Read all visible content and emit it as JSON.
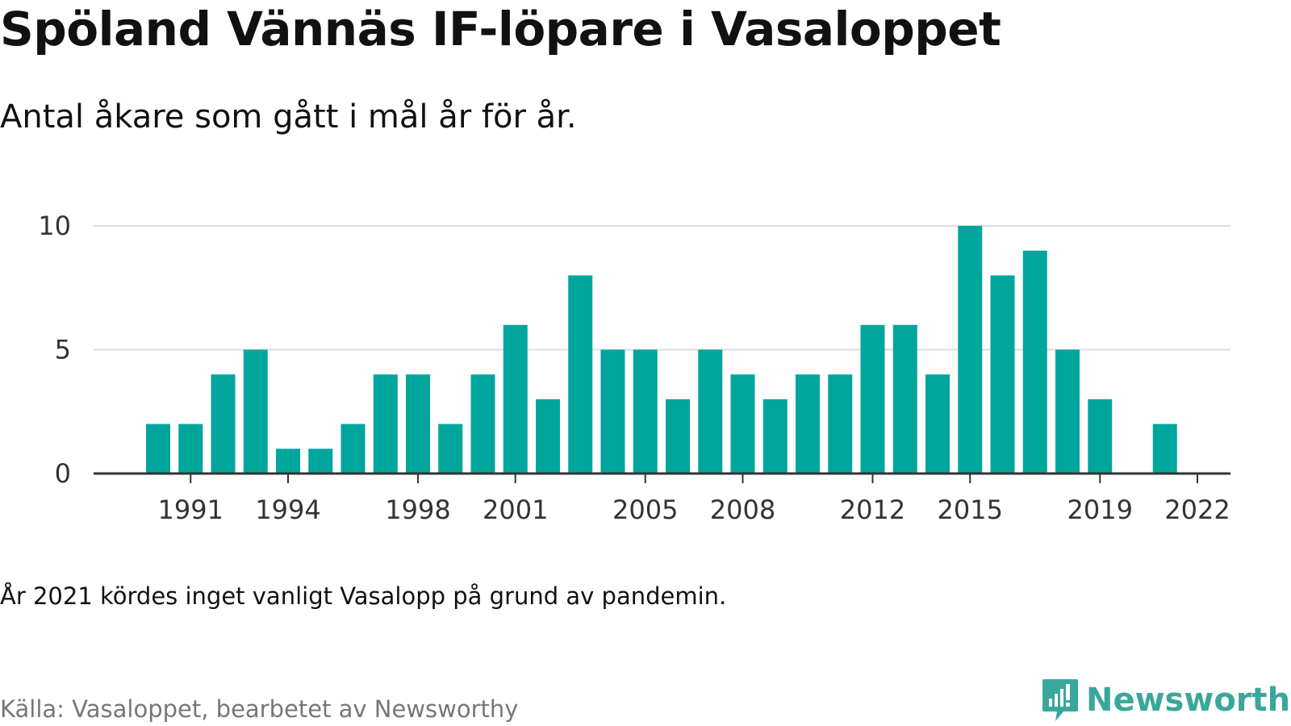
{
  "header": {
    "title": "Spöland Vännäs IF-löpare i Vasaloppet",
    "subtitle": "Antal åkare som gått i mål år för år."
  },
  "footer": {
    "note": "År 2021 kördes inget vanligt Vasalopp på grund av pandemin.",
    "source": "Källa: Vasaloppet, bearbetet av Newsworthy",
    "logo_text": "Newsworthy"
  },
  "colors": {
    "bar": "#00a69c",
    "grid": "#dddddd",
    "axis": "#333333",
    "logo": "#3aa79c"
  },
  "chart_data": {
    "type": "bar",
    "title": "Spöland Vännäs IF-löpare i Vasaloppet",
    "subtitle": "Antal åkare som gått i mål år för år.",
    "xlabel": "",
    "ylabel": "",
    "x": [
      1990,
      1991,
      1992,
      1993,
      1994,
      1995,
      1996,
      1997,
      1998,
      1999,
      2000,
      2001,
      2002,
      2003,
      2004,
      2005,
      2006,
      2007,
      2008,
      2009,
      2010,
      2011,
      2012,
      2013,
      2014,
      2015,
      2016,
      2017,
      2018,
      2019,
      2020,
      2021,
      2022
    ],
    "values": [
      2,
      2,
      4,
      5,
      1,
      1,
      2,
      4,
      4,
      2,
      4,
      6,
      3,
      8,
      5,
      5,
      3,
      5,
      4,
      3,
      4,
      4,
      6,
      6,
      4,
      10,
      8,
      9,
      5,
      3,
      null,
      2,
      null
    ],
    "xticks": [
      1991,
      1994,
      1998,
      2001,
      2005,
      2008,
      2012,
      2015,
      2019,
      2022
    ],
    "yticks": [
      0,
      5,
      10
    ],
    "ylim": [
      0,
      10
    ],
    "grid": true,
    "legend": "none"
  }
}
